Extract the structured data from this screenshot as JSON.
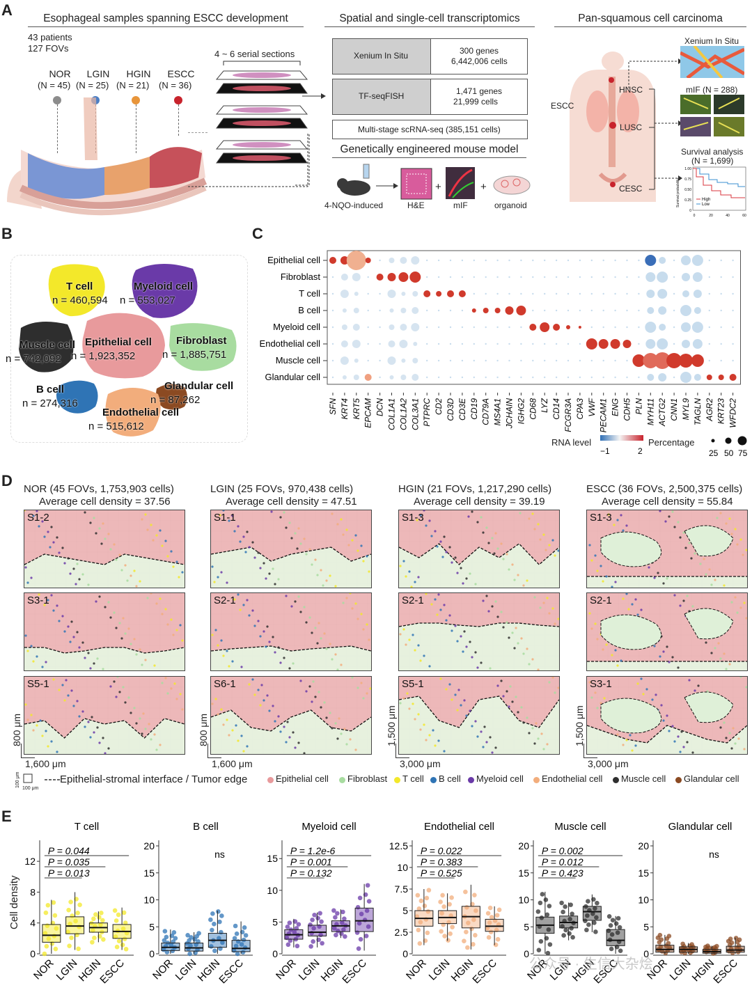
{
  "panelA": {
    "label": "A",
    "section1_title": "Esophageal samples spanning ESCC development",
    "patients": "43 patients",
    "fovs": "127 FOVs",
    "stages": [
      {
        "name": "NOR",
        "n": "(N = 45)",
        "color": "#8c8c8c"
      },
      {
        "name": "LGIN",
        "n": "(N = 25)",
        "color": "#4d7fc4"
      },
      {
        "name": "HGIN",
        "n": "(N = 21)",
        "color": "#e8953a"
      },
      {
        "name": "ESCC",
        "n": "(N = 36)",
        "color": "#c8232c"
      }
    ],
    "serial": "4 ~ 6 serial sections",
    "section2_title": "Spatial and single-cell transcriptomics",
    "xenium_label": "Xenium In Situ",
    "xenium_genes": "300 genes",
    "xenium_cells": "6,442,006 cells",
    "tf_label": "TF-seqFISH",
    "tf_genes": "1,471 genes",
    "tf_cells": "21,999 cells",
    "scrna": "Multi-stage scRNA-seq (385,151 cells)",
    "gemm_title": "Genetically engineered mouse model",
    "mouse_label": "4-NQO-induced",
    "he_label": "H&E",
    "mif_label": "mIF",
    "organoid_label": "organoid",
    "plus": "+",
    "section3_title": "Pan-squamous cell carcinoma",
    "hnsc": "HNSC",
    "escc": "ESCC",
    "lusc": "LUSC",
    "cesc": "CESC",
    "xenium_right": "Xenium In Situ",
    "mif_right": "mIF (N = 288)",
    "survival_title": "Survival analysis",
    "survival_n": "(N = 1,699)",
    "survival_ylabel": "Survival probability",
    "survival_high": "High",
    "survival_low": "Low",
    "survival_yticks": [
      "1.00",
      "0.75",
      "0.50",
      "0.25",
      "0"
    ],
    "survival_xticks": [
      "0",
      "20",
      "40",
      "60"
    ]
  },
  "panelB": {
    "label": "B",
    "clusters": [
      {
        "name": "T cell",
        "count": "n = 460,594",
        "color": "#f3e82a"
      },
      {
        "name": "Myeloid cell",
        "count": "n = 553,027",
        "color": "#6a3aa8"
      },
      {
        "name": "Muscle cell",
        "count": "n = 742,092",
        "color": "#2e2e2e"
      },
      {
        "name": "Epithelial cell",
        "count": "n = 1,923,352",
        "color": "#e89a9c"
      },
      {
        "name": "Fibroblast",
        "count": "n = 1,885,751",
        "color": "#a8dca0"
      },
      {
        "name": "B cell",
        "count": "n = 274,316",
        "color": "#2f74b5"
      },
      {
        "name": "Glandular cell",
        "count": "n = 87,262",
        "color": "#8b4a22"
      },
      {
        "name": "Endothelial cell",
        "count": "n = 515,612",
        "color": "#f2ad7c"
      }
    ]
  },
  "panelC": {
    "label": "C",
    "rows": [
      "Epithelial cell",
      "Fibroblast",
      "T cell",
      "B cell",
      "Myeloid cell",
      "Endothelial cell",
      "Muscle cell",
      "Glandular cell"
    ],
    "genes": [
      "SFN",
      "KRT4",
      "KRT5",
      "EPCAM",
      "DCN",
      "COL1A1",
      "COL1A2",
      "COL3A1",
      "PTPRC",
      "CD2",
      "CD3D",
      "CD3E",
      "CD19",
      "CD79A",
      "MS4A1",
      "JCHAIN",
      "IGHG2",
      "CD68",
      "LYZ",
      "CD14",
      "FCGR3A",
      "CPA3",
      "VWF",
      "PECAM1",
      "ENG",
      "CDH5",
      "PLN",
      "MYH11",
      "ACTG2",
      "CNN1",
      "MYL9",
      "TAGLN",
      "AGR2",
      "KRT23",
      "WFDC2"
    ],
    "rna_level_label": "RNA level",
    "rna_ticks": [
      "−1",
      "2"
    ],
    "percentage_label": "Percentage",
    "pct_ticks": [
      "25",
      "50",
      "75"
    ]
  },
  "panelD": {
    "label": "D",
    "columns": [
      {
        "title": "NOR (45 FOVs, 1,753,903 cells)",
        "density": "Average cell density = 37.56",
        "fovs": [
          "S1-2",
          "S3-1",
          "S5-1"
        ],
        "scale_y": "800 μm",
        "scale_x": "1,600 μm"
      },
      {
        "title": "LGIN (25 FOVs, 970,438 cells)",
        "density": "Average cell density = 47.51",
        "fovs": [
          "S1-1",
          "S2-1",
          "S6-1"
        ],
        "scale_y": "800 μm",
        "scale_x": "1,600 μm"
      },
      {
        "title": "HGIN (21 FOVs, 1,217,290 cells)",
        "density": "Average cell density = 39.19",
        "fovs": [
          "S1-3",
          "S2-1",
          "S5-1"
        ],
        "scale_y": "1,500 μm",
        "scale_x": "3,000 μm"
      },
      {
        "title": "ESCC (36 FOVs, 2,500,375 cells)",
        "density": "Average cell density = 55.84",
        "fovs": [
          "S1-3",
          "S2-1",
          "S3-1"
        ],
        "scale_y": "1,500 μm",
        "scale_x": "3,000 μm"
      }
    ],
    "grid_unit": "100 μm",
    "interface_label": "Epithelial-stromal interface / Tumor edge",
    "legend": [
      {
        "name": "Epithelial cell",
        "color": "#e89a9c"
      },
      {
        "name": "Fibroblast",
        "color": "#a8dca0"
      },
      {
        "name": "T cell",
        "color": "#f3e82a"
      },
      {
        "name": "B cell",
        "color": "#2f74b5"
      },
      {
        "name": "Myeloid cell",
        "color": "#6a3aa8"
      },
      {
        "name": "Endothelial cell",
        "color": "#f2ad7c"
      },
      {
        "name": "Muscle cell",
        "color": "#2e2e2e"
      },
      {
        "name": "Glandular cell",
        "color": "#8b4a22"
      }
    ]
  },
  "panelE": {
    "label": "E",
    "ylabel": "Cell density",
    "categories": [
      "NOR",
      "LGIN",
      "HGIN",
      "ESCC"
    ]
  },
  "chart_data": [
    {
      "type": "box",
      "title": "T cell",
      "color": "#f3e82a",
      "categories": [
        "NOR",
        "LGIN",
        "HGIN",
        "ESCC"
      ],
      "ylim": [
        0,
        14
      ],
      "yticks": [
        0,
        4,
        8,
        12
      ],
      "boxes": [
        {
          "q1": 1.5,
          "median": 2.4,
          "q3": 3.8,
          "min": 0,
          "max": 7.0
        },
        {
          "q1": 2.6,
          "median": 3.6,
          "q3": 4.8,
          "min": 0.5,
          "max": 8.0
        },
        {
          "q1": 2.8,
          "median": 3.4,
          "q3": 4.0,
          "min": 1.5,
          "max": 5.5
        },
        {
          "q1": 2.0,
          "median": 2.9,
          "q3": 3.8,
          "min": 0.5,
          "max": 6.0
        }
      ],
      "pvalues": [
        "P = 0.013",
        "P = 0.035",
        "P = 0.044"
      ]
    },
    {
      "type": "box",
      "title": "B cell",
      "color": "#2f74b5",
      "categories": [
        "NOR",
        "LGIN",
        "HGIN",
        "ESCC"
      ],
      "ylim": [
        0,
        20
      ],
      "yticks": [
        0,
        5,
        10,
        15,
        20
      ],
      "boxes": [
        {
          "q1": 0.6,
          "median": 1.2,
          "q3": 2.0,
          "min": 0,
          "max": 4.5
        },
        {
          "q1": 0.5,
          "median": 1.1,
          "q3": 2.0,
          "min": 0,
          "max": 4.0
        },
        {
          "q1": 1.2,
          "median": 2.5,
          "q3": 3.8,
          "min": 0,
          "max": 8.0
        },
        {
          "q1": 0.4,
          "median": 1.0,
          "q3": 2.5,
          "min": 0,
          "max": 6.0
        }
      ],
      "pvalues": [
        "ns"
      ]
    },
    {
      "type": "box",
      "title": "Myeloid cell",
      "color": "#6a3aa8",
      "categories": [
        "NOR",
        "LGIN",
        "HGIN",
        "ESCC"
      ],
      "ylim": [
        0,
        17
      ],
      "yticks": [
        0,
        5,
        10,
        15
      ],
      "boxes": [
        {
          "q1": 2.3,
          "median": 3.0,
          "q3": 3.8,
          "min": 1.0,
          "max": 5.5
        },
        {
          "q1": 2.8,
          "median": 3.4,
          "q3": 4.5,
          "min": 1.0,
          "max": 6.5
        },
        {
          "q1": 3.5,
          "median": 4.4,
          "q3": 5.2,
          "min": 2.5,
          "max": 7.0
        },
        {
          "q1": 3.5,
          "median": 5.2,
          "q3": 7.2,
          "min": 0.5,
          "max": 11.0
        }
      ],
      "pvalues": [
        "P = 0.132",
        "P = 0.001",
        "P = 1.2e-6"
      ]
    },
    {
      "type": "box",
      "title": "Endothelial cell",
      "color": "#f2ad7c",
      "categories": [
        "NOR",
        "LGIN",
        "HGIN",
        "ESCC"
      ],
      "ylim": [
        0,
        12.5
      ],
      "yticks": [
        0,
        2.5,
        5.0,
        7.5,
        10.0,
        12.5
      ],
      "boxes": [
        {
          "q1": 3.2,
          "median": 4.1,
          "q3": 5.0,
          "min": 1.0,
          "max": 7.5
        },
        {
          "q1": 3.5,
          "median": 4.2,
          "q3": 5.0,
          "min": 1.5,
          "max": 7.0
        },
        {
          "q1": 3.0,
          "median": 4.3,
          "q3": 5.5,
          "min": 0.5,
          "max": 8.0
        },
        {
          "q1": 2.6,
          "median": 3.2,
          "q3": 4.0,
          "min": 1.0,
          "max": 5.5
        }
      ],
      "pvalues": [
        "P = 0.525",
        "P = 0.383",
        "P = 0.022"
      ]
    },
    {
      "type": "box",
      "title": "Muscle cell",
      "color": "#2e2e2e",
      "categories": [
        "NOR",
        "LGIN",
        "HGIN",
        "ESCC"
      ],
      "ylim": [
        0,
        20
      ],
      "yticks": [
        0,
        5,
        10,
        15,
        20
      ],
      "boxes": [
        {
          "q1": 3.8,
          "median": 5.3,
          "q3": 6.8,
          "min": 0,
          "max": 11.5
        },
        {
          "q1": 4.8,
          "median": 5.8,
          "q3": 7.0,
          "min": 2.5,
          "max": 9.5
        },
        {
          "q1": 6.2,
          "median": 7.8,
          "q3": 8.8,
          "min": 4.0,
          "max": 11.0
        },
        {
          "q1": 1.5,
          "median": 2.5,
          "q3": 4.5,
          "min": 0,
          "max": 7.0
        }
      ],
      "pvalues": [
        "P = 0.423",
        "P = 0.012",
        "P = 0.002"
      ]
    },
    {
      "type": "box",
      "title": "Glandular cell",
      "color": "#8b4a22",
      "categories": [
        "NOR",
        "LGIN",
        "HGIN",
        "ESCC"
      ],
      "ylim": [
        0,
        20
      ],
      "yticks": [
        0,
        5,
        10,
        15,
        20
      ],
      "boxes": [
        {
          "q1": 0.3,
          "median": 0.8,
          "q3": 1.6,
          "min": 0,
          "max": 3.5
        },
        {
          "q1": 0.3,
          "median": 0.8,
          "q3": 1.3,
          "min": 0,
          "max": 2.0
        },
        {
          "q1": 0.1,
          "median": 0.4,
          "q3": 0.8,
          "min": 0,
          "max": 1.5
        },
        {
          "q1": 0.3,
          "median": 0.7,
          "q3": 1.4,
          "min": 0,
          "max": 3.0
        }
      ],
      "pvalues": [
        "ns"
      ]
    }
  ],
  "watermark": "公众号 · 生信大杂烩"
}
